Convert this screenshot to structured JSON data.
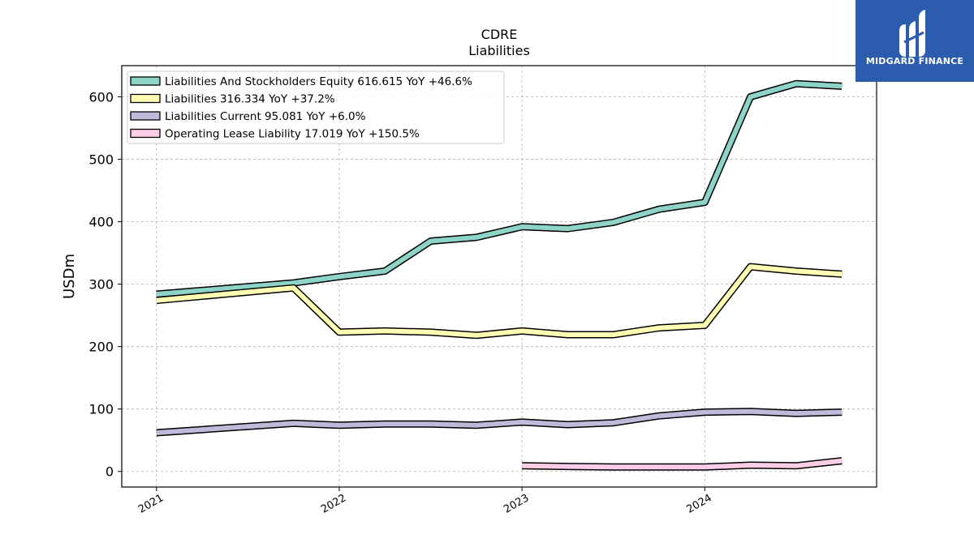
{
  "chart_data": {
    "type": "line",
    "title": "CDRE",
    "subtitle": "Liabilities",
    "xlabel": "",
    "ylabel": "USDm",
    "ylim": [
      -25,
      650
    ],
    "xlim": [
      2020.81,
      2024.94
    ],
    "yticks": [
      0,
      100,
      200,
      300,
      400,
      500,
      600
    ],
    "xticks": [
      {
        "value": 2021,
        "label": "2021"
      },
      {
        "value": 2022,
        "label": "2022"
      },
      {
        "value": 2023,
        "label": "2023"
      },
      {
        "value": 2024,
        "label": "2024"
      }
    ],
    "grid": true,
    "legend_position": "top-left",
    "series": [
      {
        "name": "Liabilities And Stockholders Equity",
        "legend": "Liabilities And Stockholders Equity  616.615 YoY +46.6%",
        "color": "#8dd3c7",
        "x": [
          2021.0,
          2021.75,
          2022.0,
          2022.25,
          2022.5,
          2022.75,
          2023.0,
          2023.25,
          2023.5,
          2023.75,
          2024.0,
          2024.25,
          2024.5,
          2024.75
        ],
        "values": [
          284,
          302,
          312,
          321,
          369,
          375,
          392,
          389,
          399,
          420,
          431,
          600,
          621,
          617
        ]
      },
      {
        "name": "Liabilities",
        "legend": "Liabilities  316.334 YoY +37.2%",
        "color": "#ffffb3",
        "x": [
          2021.0,
          2021.75,
          2022.0,
          2022.25,
          2022.5,
          2022.75,
          2023.0,
          2023.25,
          2023.5,
          2023.75,
          2024.0,
          2024.25,
          2024.5,
          2024.75
        ],
        "values": [
          274,
          294,
          223,
          225,
          223,
          218,
          225,
          219,
          219,
          230,
          234,
          328,
          321,
          316
        ]
      },
      {
        "name": "Liabilities Current",
        "legend": "Liabilities Current  95.081 YoY +6.0%",
        "color": "#bebada",
        "x": [
          2021.0,
          2021.75,
          2022.0,
          2022.25,
          2022.5,
          2022.75,
          2023.0,
          2023.25,
          2023.5,
          2023.75,
          2024.0,
          2024.25,
          2024.5,
          2024.75
        ],
        "values": [
          62,
          77,
          74,
          76,
          76,
          74,
          79,
          75,
          78,
          89,
          95,
          96,
          93,
          95
        ]
      },
      {
        "name": "Operating Lease Liability",
        "legend": "Operating Lease Liability  17.019 YoY +150.5%",
        "color": "#fccde5",
        "x": [
          2023.0,
          2023.25,
          2023.5,
          2023.75,
          2024.0,
          2024.25,
          2024.5,
          2024.75
        ],
        "values": [
          9,
          8,
          7,
          7,
          7,
          10,
          9,
          17
        ]
      }
    ]
  },
  "logo": {
    "text": "MIDGARD FINANCE",
    "color": "#2b5cad"
  }
}
